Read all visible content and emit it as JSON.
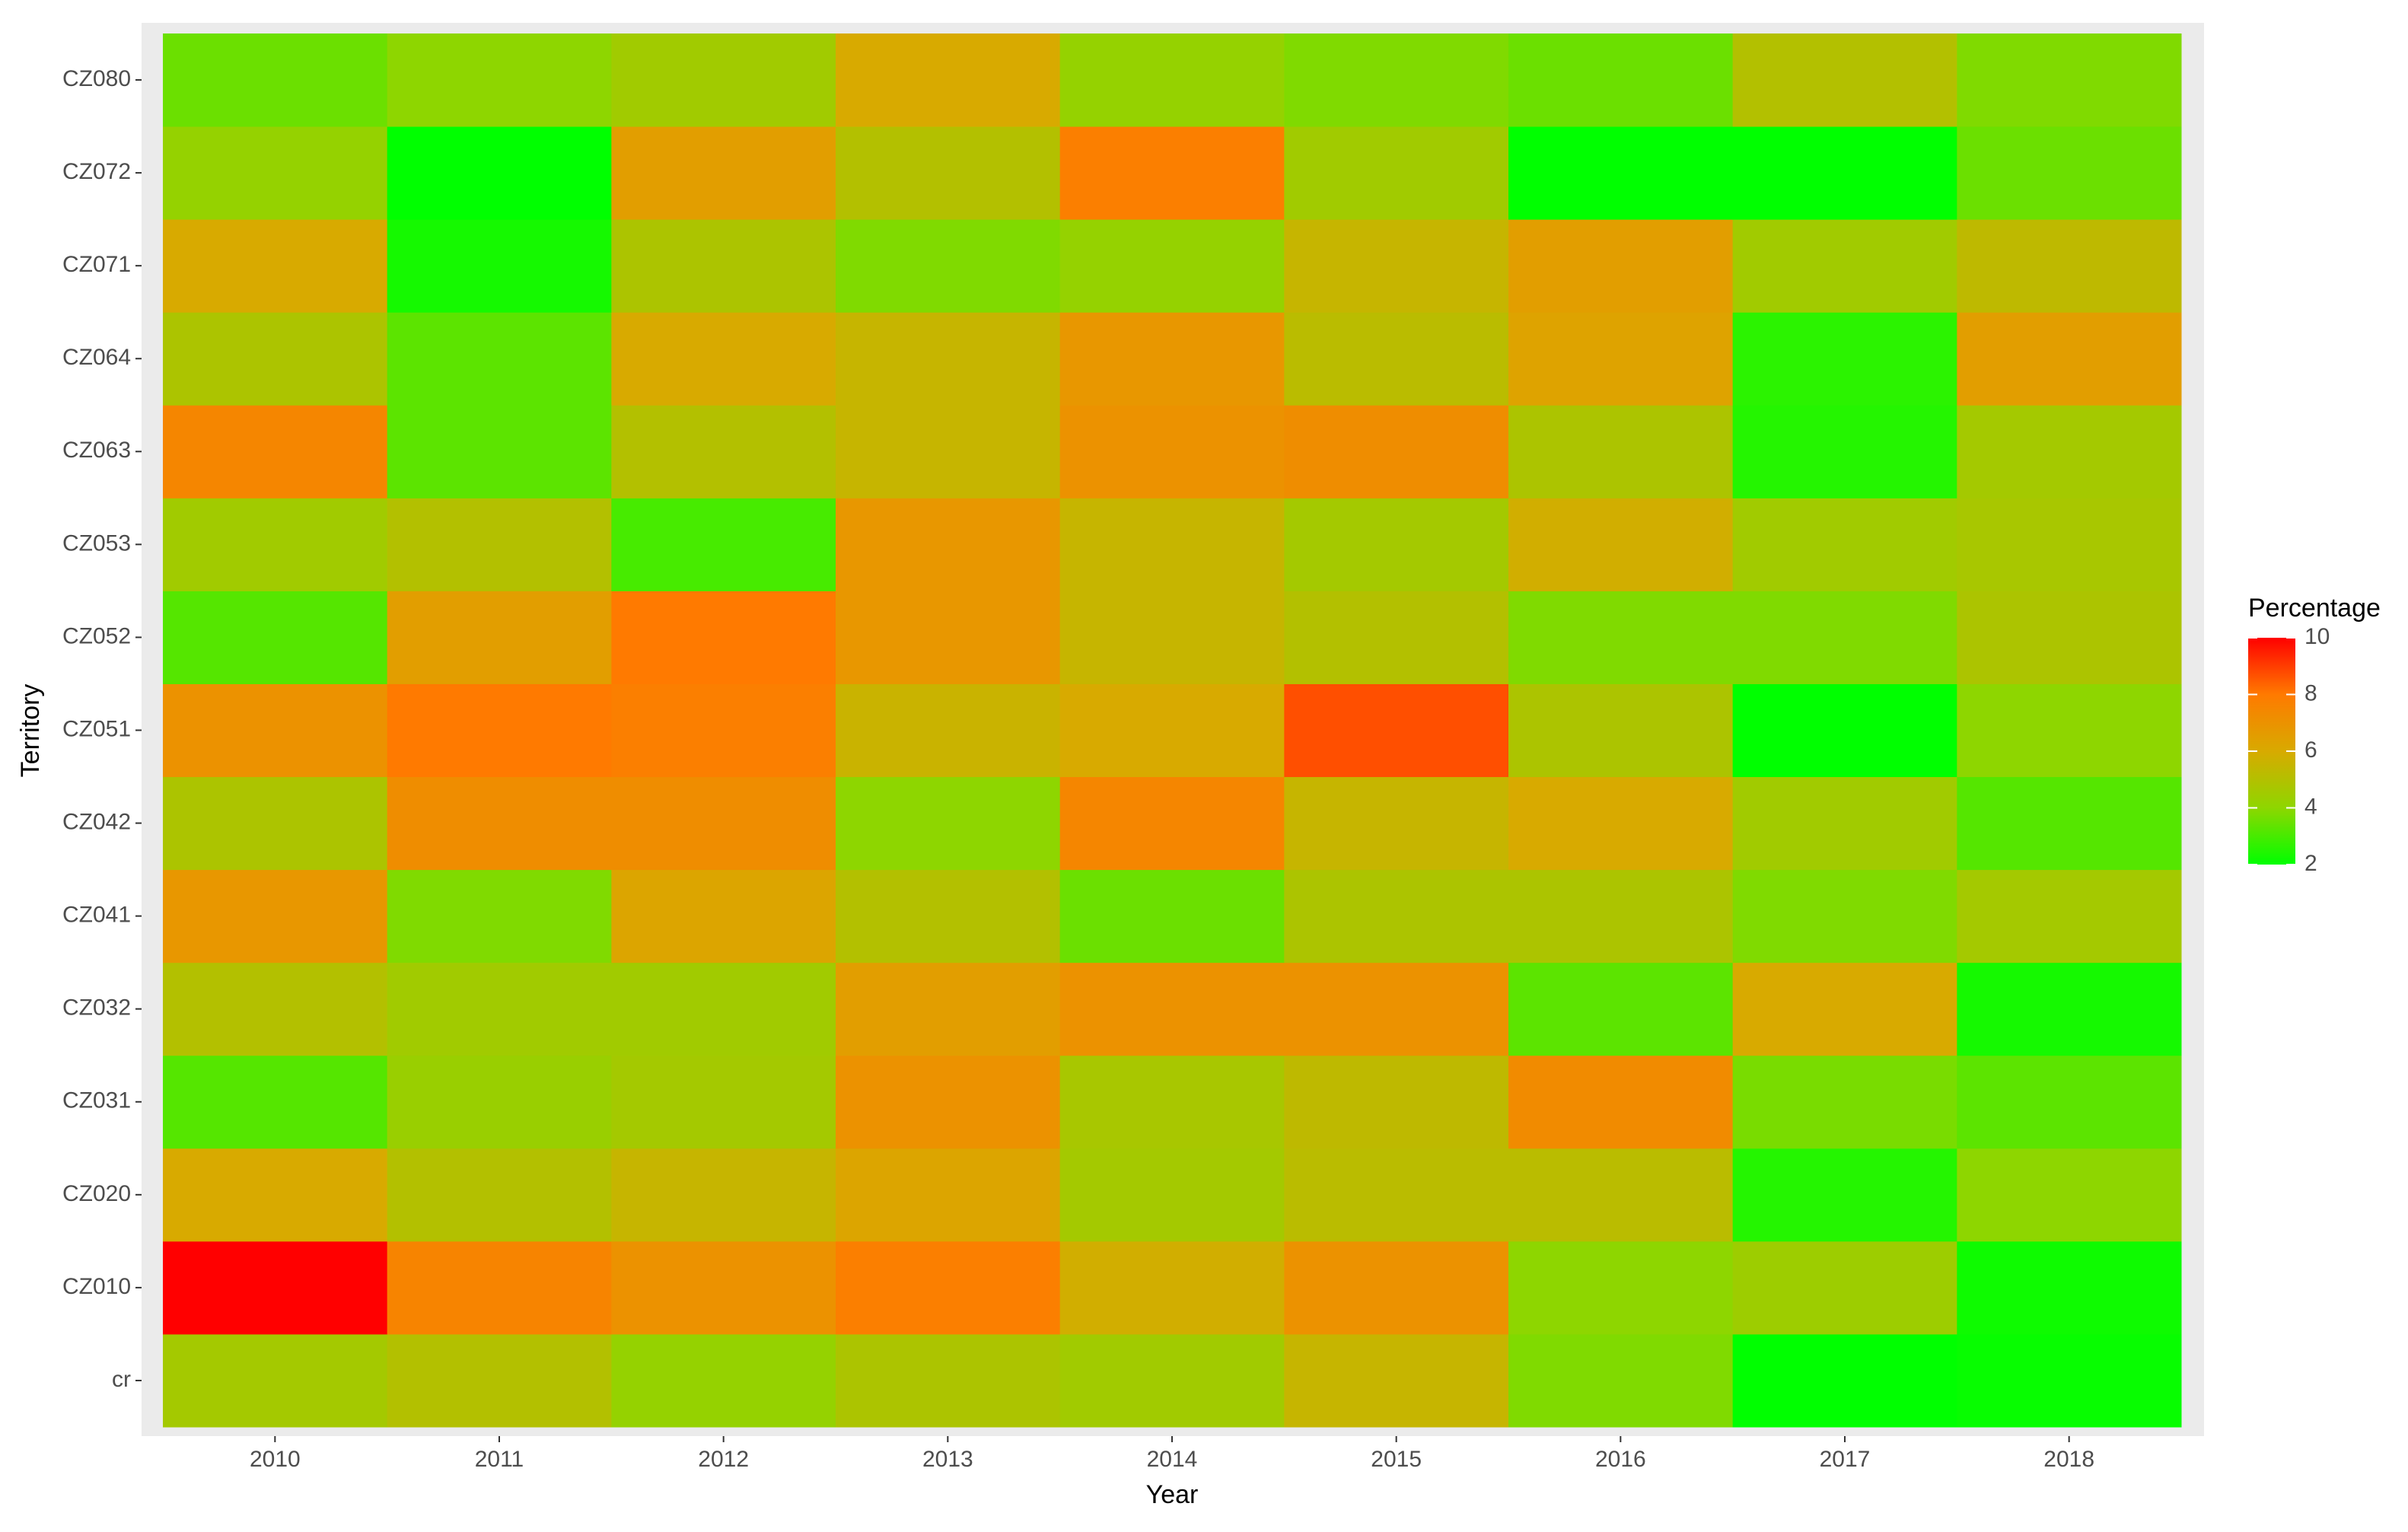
{
  "chart_data": {
    "type": "heatmap",
    "x_label": "Year",
    "y_label": "Territory",
    "legend_title": "Percentage",
    "x": [
      "2010",
      "2011",
      "2012",
      "2013",
      "2014",
      "2015",
      "2016",
      "2017",
      "2018"
    ],
    "y": [
      "cr",
      "CZ010",
      "CZ020",
      "CZ031",
      "CZ032",
      "CZ041",
      "CZ042",
      "CZ051",
      "CZ052",
      "CZ053",
      "CZ063",
      "CZ064",
      "CZ071",
      "CZ072",
      "CZ080"
    ],
    "values": [
      [
        4.6,
        5.0,
        4.2,
        4.8,
        4.5,
        5.5,
        3.8,
        2.0,
        2.1
      ],
      [
        10.0,
        7.6,
        7.0,
        7.8,
        5.8,
        7.0,
        4.0,
        4.4,
        2.2
      ],
      [
        6.0,
        5.0,
        5.5,
        6.2,
        4.6,
        5.2,
        5.2,
        2.5,
        4.0
      ],
      [
        3.2,
        4.3,
        4.6,
        7.0,
        4.7,
        5.3,
        7.3,
        3.7,
        3.3
      ],
      [
        5.0,
        4.5,
        4.5,
        6.5,
        7.0,
        7.0,
        3.3,
        6.0,
        2.3
      ],
      [
        6.8,
        3.8,
        6.2,
        5.0,
        3.5,
        4.8,
        4.8,
        3.8,
        4.6
      ],
      [
        4.8,
        7.2,
        7.2,
        4.0,
        7.5,
        5.5,
        6.0,
        4.5,
        3.2
      ],
      [
        7.0,
        8.0,
        7.8,
        5.6,
        6.0,
        8.7,
        4.8,
        2.0,
        4.0
      ],
      [
        3.2,
        6.5,
        8.0,
        6.8,
        5.5,
        5.0,
        3.8,
        3.8,
        4.8
      ],
      [
        4.5,
        5.0,
        3.0,
        6.8,
        5.5,
        4.6,
        5.8,
        4.5,
        4.7
      ],
      [
        7.5,
        3.3,
        5.0,
        5.5,
        7.0,
        7.2,
        4.8,
        2.5,
        4.6
      ],
      [
        4.8,
        3.3,
        6.0,
        5.5,
        6.8,
        5.2,
        6.3,
        2.6,
        6.5
      ],
      [
        6.0,
        2.3,
        4.8,
        3.8,
        4.2,
        5.5,
        6.5,
        4.5,
        5.3
      ],
      [
        4.2,
        2.0,
        6.5,
        5.0,
        7.8,
        4.5,
        2.0,
        2.0,
        3.5
      ],
      [
        3.5,
        4.0,
        4.5,
        6.0,
        4.2,
        3.8,
        3.5,
        5.0,
        3.8
      ]
    ],
    "color_lim": [
      2,
      10
    ],
    "legend_ticks": [
      2,
      4,
      6,
      8,
      10
    ],
    "colors": [
      "#00ff00",
      "#8ed600",
      "#d8aa00",
      "#ff7a00",
      "#ff0000"
    ],
    "panel_color": "#ebebeb"
  }
}
